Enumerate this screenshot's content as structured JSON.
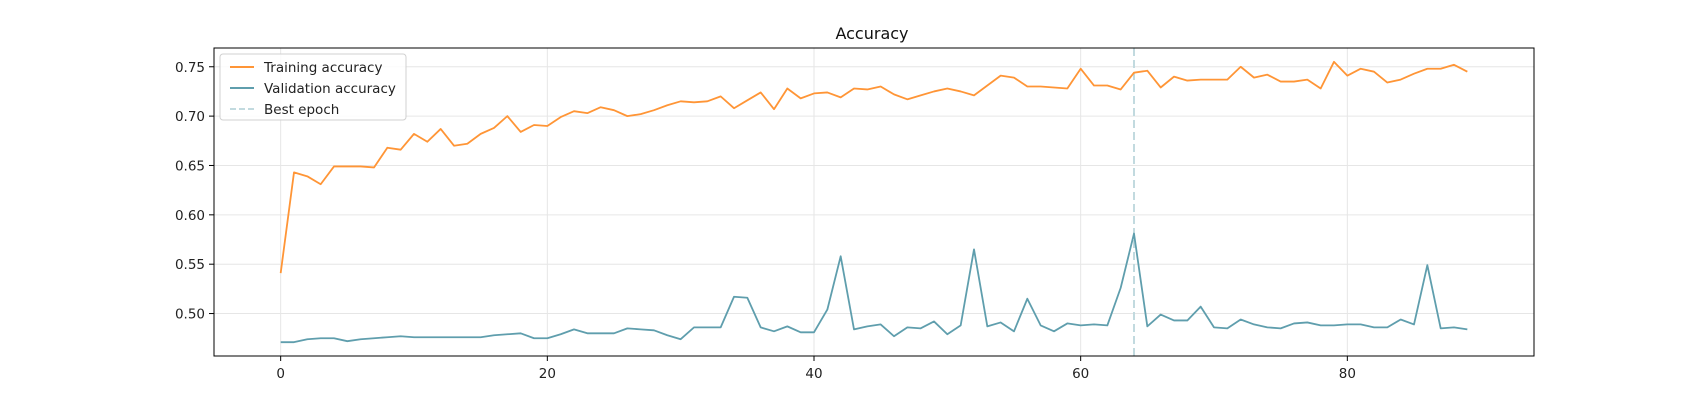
{
  "chart_data": {
    "type": "line",
    "title": "Accuracy",
    "xlabel": "",
    "ylabel": "",
    "xlim": [
      -5,
      94
    ],
    "ylim": [
      0.457,
      0.769
    ],
    "x_ticks": [
      0,
      20,
      40,
      60,
      80
    ],
    "y_ticks": [
      0.5,
      0.55,
      0.6,
      0.65,
      0.7,
      0.75
    ],
    "y_tick_labels": [
      "0.50",
      "0.55",
      "0.60",
      "0.65",
      "0.70",
      "0.75"
    ],
    "grid": true,
    "legend_position": "top-left",
    "x": [
      0,
      1,
      2,
      3,
      4,
      5,
      6,
      7,
      8,
      9,
      10,
      11,
      12,
      13,
      14,
      15,
      16,
      17,
      18,
      19,
      20,
      21,
      22,
      23,
      24,
      25,
      26,
      27,
      28,
      29,
      30,
      31,
      32,
      33,
      34,
      35,
      36,
      37,
      38,
      39,
      40,
      41,
      42,
      43,
      44,
      45,
      46,
      47,
      48,
      49,
      50,
      51,
      52,
      53,
      54,
      55,
      56,
      57,
      58,
      59,
      60,
      61,
      62,
      63,
      64,
      65,
      66,
      67,
      68,
      69,
      70,
      71,
      72,
      73,
      74,
      75,
      76,
      77,
      78,
      79,
      80,
      81,
      82,
      83,
      84,
      85,
      86,
      87,
      88,
      89
    ],
    "series": [
      {
        "name": "Training accuracy",
        "color": "#ff9536",
        "style": "solid",
        "values": [
          0.541,
          0.643,
          0.639,
          0.631,
          0.649,
          0.649,
          0.649,
          0.648,
          0.668,
          0.666,
          0.682,
          0.674,
          0.687,
          0.67,
          0.672,
          0.682,
          0.688,
          0.7,
          0.684,
          0.691,
          0.69,
          0.699,
          0.705,
          0.703,
          0.709,
          0.706,
          0.7,
          0.702,
          0.706,
          0.711,
          0.715,
          0.714,
          0.715,
          0.72,
          0.708,
          0.716,
          0.724,
          0.707,
          0.728,
          0.718,
          0.723,
          0.724,
          0.719,
          0.728,
          0.727,
          0.73,
          0.722,
          0.717,
          0.721,
          0.725,
          0.728,
          0.725,
          0.721,
          0.731,
          0.741,
          0.739,
          0.73,
          0.73,
          0.729,
          0.728,
          0.748,
          0.731,
          0.731,
          0.727,
          0.744,
          0.746,
          0.729,
          0.74,
          0.736,
          0.737,
          0.737,
          0.737,
          0.75,
          0.739,
          0.742,
          0.735,
          0.735,
          0.737,
          0.728,
          0.755,
          0.741,
          0.748,
          0.745,
          0.734,
          0.737,
          0.743,
          0.748,
          0.748,
          0.752,
          0.745
        ]
      },
      {
        "name": "Validation accuracy",
        "color": "#5f9ead",
        "style": "solid",
        "values": [
          0.471,
          0.471,
          0.474,
          0.475,
          0.475,
          0.472,
          0.474,
          0.475,
          0.476,
          0.477,
          0.476,
          0.476,
          0.476,
          0.476,
          0.476,
          0.476,
          0.478,
          0.479,
          0.48,
          0.475,
          0.475,
          0.479,
          0.484,
          0.48,
          0.48,
          0.48,
          0.485,
          0.484,
          0.483,
          0.478,
          0.474,
          0.486,
          0.486,
          0.486,
          0.517,
          0.516,
          0.486,
          0.482,
          0.487,
          0.481,
          0.481,
          0.504,
          0.558,
          0.484,
          0.487,
          0.489,
          0.477,
          0.486,
          0.485,
          0.492,
          0.479,
          0.488,
          0.565,
          0.487,
          0.491,
          0.482,
          0.515,
          0.488,
          0.482,
          0.49,
          0.488,
          0.489,
          0.488,
          0.526,
          0.581,
          0.487,
          0.499,
          0.493,
          0.493,
          0.507,
          0.486,
          0.485,
          0.494,
          0.489,
          0.486,
          0.485,
          0.49,
          0.491,
          0.488,
          0.488,
          0.489,
          0.489,
          0.486,
          0.486,
          0.494,
          0.489,
          0.549,
          0.485,
          0.486,
          0.484
        ]
      }
    ],
    "vlines": [
      {
        "name": "Best epoch",
        "x": 64,
        "color": "#c2dadf",
        "style": "dashed"
      }
    ]
  }
}
